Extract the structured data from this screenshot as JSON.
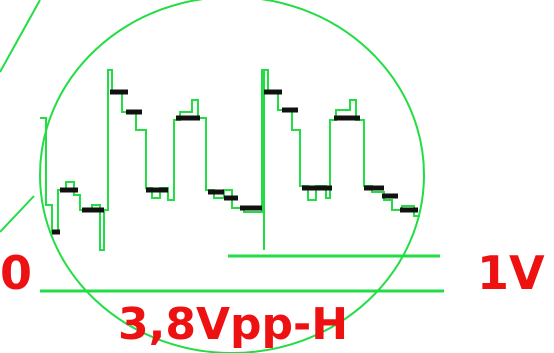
{
  "labels": {
    "left_marker": "0",
    "right_marker": "1V",
    "amplitude": "3,8Vpp-H"
  },
  "colors": {
    "trace": "#22dd44",
    "marks": "#111111",
    "text": "#ee1111",
    "background": "#ffffff"
  }
}
